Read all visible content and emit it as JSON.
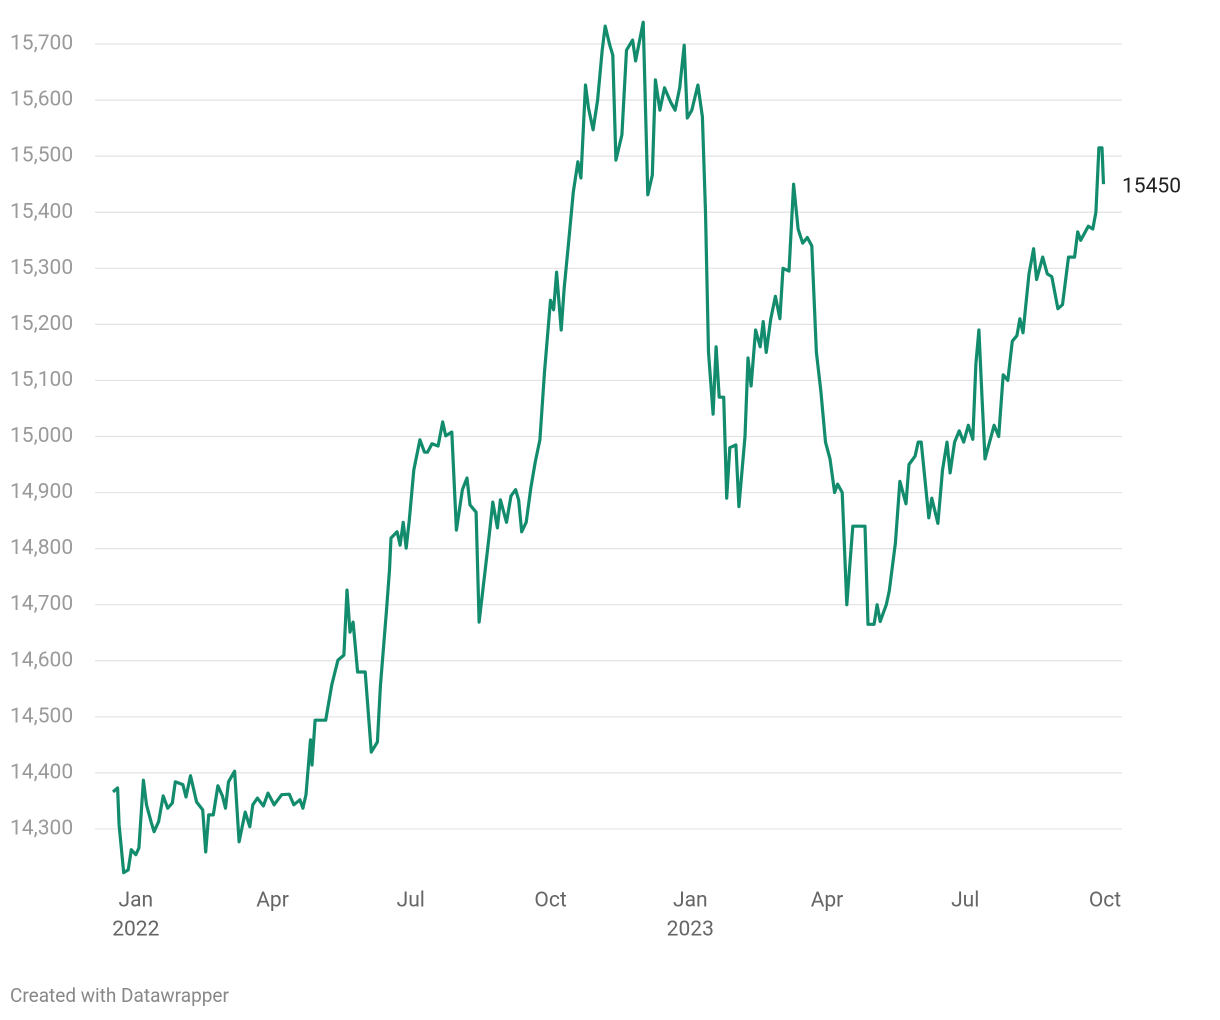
{
  "chart_data": {
    "type": "line",
    "credit": "Created with Datawrapper",
    "color": "#138c6e",
    "grid": true,
    "xlim": [
      "2021-12-15",
      "2023-10-01"
    ],
    "ylim": [
      14200,
      15750
    ],
    "yticks": [
      {
        "value": 14300,
        "label": "14,300"
      },
      {
        "value": 14400,
        "label": "14,400"
      },
      {
        "value": 14500,
        "label": "14,500"
      },
      {
        "value": 14600,
        "label": "14,600"
      },
      {
        "value": 14700,
        "label": "14,700"
      },
      {
        "value": 14800,
        "label": "14,800"
      },
      {
        "value": 14900,
        "label": "14,900"
      },
      {
        "value": 15000,
        "label": "15,000"
      },
      {
        "value": 15100,
        "label": "15,100"
      },
      {
        "value": 15200,
        "label": "15,200"
      },
      {
        "value": 15300,
        "label": "15,300"
      },
      {
        "value": 15400,
        "label": "15,400"
      },
      {
        "value": 15500,
        "label": "15,500"
      },
      {
        "value": 15600,
        "label": "15,600"
      },
      {
        "value": 15700,
        "label": "15,700"
      }
    ],
    "xticks": [
      {
        "value": "2022-01-01",
        "label": "Jan",
        "year": "2022"
      },
      {
        "value": "2022-04-01",
        "label": "Apr"
      },
      {
        "value": "2022-07-01",
        "label": "Jul"
      },
      {
        "value": "2022-10-01",
        "label": "Oct"
      },
      {
        "value": "2023-01-01",
        "label": "Jan",
        "year": "2023"
      },
      {
        "value": "2023-04-01",
        "label": "Apr"
      },
      {
        "value": "2023-07-01",
        "label": "Jul"
      },
      {
        "value": "2023-10-01",
        "label": "Oct"
      }
    ],
    "x": [
      "2021-12-17",
      "2021-12-20",
      "2021-12-21",
      "2021-12-24",
      "2021-12-27",
      "2021-12-29",
      "2022-01-01",
      "2022-01-03",
      "2022-01-06",
      "2022-01-08",
      "2022-01-11",
      "2022-01-13",
      "2022-01-16",
      "2022-01-19",
      "2022-01-22",
      "2022-01-25",
      "2022-01-27",
      "2022-02-01",
      "2022-02-03",
      "2022-02-06",
      "2022-02-10",
      "2022-02-14",
      "2022-02-16",
      "2022-02-18",
      "2022-02-21",
      "2022-02-24",
      "2022-02-27",
      "2022-03-01",
      "2022-03-03",
      "2022-03-07",
      "2022-03-10",
      "2022-03-14",
      "2022-03-17",
      "2022-03-19",
      "2022-03-22",
      "2022-03-26",
      "2022-03-29",
      "2022-04-02",
      "2022-04-07",
      "2022-04-12",
      "2022-04-15",
      "2022-04-19",
      "2022-04-21",
      "2022-04-23",
      "2022-04-26",
      "2022-04-27",
      "2022-04-29",
      "2022-05-06",
      "2022-05-10",
      "2022-05-14",
      "2022-05-18",
      "2022-05-20",
      "2022-05-22",
      "2022-05-24",
      "2022-05-27",
      "2022-06-01",
      "2022-06-05",
      "2022-06-09",
      "2022-06-11",
      "2022-06-15",
      "2022-06-17",
      "2022-06-18",
      "2022-06-22",
      "2022-06-24",
      "2022-06-26",
      "2022-06-28",
      "2022-06-30",
      "2022-07-03",
      "2022-07-07",
      "2022-07-10",
      "2022-07-12",
      "2022-07-15",
      "2022-07-19",
      "2022-07-22",
      "2022-07-24",
      "2022-07-28",
      "2022-07-31",
      "2022-08-04",
      "2022-08-07",
      "2022-08-09",
      "2022-08-13",
      "2022-08-15",
      "2022-08-19",
      "2022-08-22",
      "2022-08-24",
      "2022-08-27",
      "2022-08-29",
      "2022-09-02",
      "2022-09-05",
      "2022-09-08",
      "2022-09-10",
      "2022-09-12",
      "2022-09-15",
      "2022-09-18",
      "2022-09-21",
      "2022-09-24",
      "2022-09-27",
      "2022-10-01",
      "2022-10-03",
      "2022-10-05",
      "2022-10-08",
      "2022-10-10",
      "2022-10-13",
      "2022-10-16",
      "2022-10-19",
      "2022-10-21",
      "2022-10-24",
      "2022-10-26",
      "2022-10-29",
      "2022-11-01",
      "2022-11-04",
      "2022-11-06",
      "2022-11-09",
      "2022-11-11",
      "2022-11-13",
      "2022-11-17",
      "2022-11-20",
      "2022-11-24",
      "2022-11-26",
      "2022-12-01",
      "2022-12-04",
      "2022-12-07",
      "2022-12-09",
      "2022-12-12",
      "2022-12-15",
      "2022-12-19",
      "2022-12-22",
      "2022-12-25",
      "2022-12-28",
      "2022-12-30",
      "2023-01-02",
      "2023-01-06",
      "2023-01-09",
      "2023-01-11",
      "2023-01-13",
      "2023-01-16",
      "2023-01-18",
      "2023-01-20",
      "2023-01-23",
      "2023-01-25",
      "2023-01-27",
      "2023-01-31",
      "2023-02-02",
      "2023-02-06",
      "2023-02-08",
      "2023-02-10",
      "2023-02-13",
      "2023-02-16",
      "2023-02-18",
      "2023-02-20",
      "2023-02-23",
      "2023-02-26",
      "2023-03-01",
      "2023-03-03",
      "2023-03-07",
      "2023-03-10",
      "2023-03-13",
      "2023-03-16",
      "2023-03-19",
      "2023-03-22",
      "2023-03-25",
      "2023-03-28",
      "2023-03-31",
      "2023-04-03",
      "2023-04-06",
      "2023-04-08",
      "2023-04-11",
      "2023-04-14",
      "2023-04-18",
      "2023-04-26",
      "2023-04-28",
      "2023-05-02",
      "2023-05-04",
      "2023-05-06",
      "2023-05-10",
      "2023-05-12",
      "2023-05-16",
      "2023-05-19",
      "2023-05-23",
      "2023-05-25",
      "2023-05-29",
      "2023-05-31",
      "2023-06-02",
      "2023-06-07",
      "2023-06-09",
      "2023-06-13",
      "2023-06-16",
      "2023-06-19",
      "2023-06-21",
      "2023-06-24",
      "2023-06-27",
      "2023-06-30",
      "2023-07-03",
      "2023-07-06",
      "2023-07-08",
      "2023-07-10",
      "2023-07-12",
      "2023-07-14",
      "2023-07-18",
      "2023-07-20",
      "2023-07-23",
      "2023-07-26",
      "2023-07-29",
      "2023-08-01",
      "2023-08-04",
      "2023-08-06",
      "2023-08-08",
      "2023-08-12",
      "2023-08-15",
      "2023-08-17",
      "2023-08-21",
      "2023-08-24",
      "2023-08-27",
      "2023-08-31",
      "2023-09-03",
      "2023-09-07",
      "2023-09-11",
      "2023-09-13",
      "2023-09-15",
      "2023-09-17",
      "2023-09-20",
      "2023-09-23",
      "2023-09-25",
      "2023-09-27",
      "2023-09-29",
      "2023-09-30"
    ],
    "values": [
      14366,
      14373,
      14307,
      14222,
      14227,
      14263,
      14254,
      14266,
      14387,
      14343,
      14313,
      14295,
      14313,
      14359,
      14337,
      14346,
      14384,
      14379,
      14357,
      14395,
      14348,
      14334,
      14259,
      14325,
      14325,
      14377,
      14359,
      14337,
      14384,
      14403,
      14277,
      14330,
      14304,
      14343,
      14355,
      14341,
      14364,
      14343,
      14361,
      14362,
      14343,
      14352,
      14337,
      14361,
      14459,
      14414,
      14494,
      14494,
      14557,
      14601,
      14610,
      14726,
      14651,
      14669,
      14580,
      14580,
      14437,
      14455,
      14555,
      14690,
      14762,
      14819,
      14830,
      14806,
      14847,
      14801,
      14851,
      14940,
      14994,
      14972,
      14972,
      14987,
      14983,
      15026,
      15001,
      15008,
      14833,
      14905,
      14926,
      14878,
      14865,
      14669,
      14762,
      14833,
      14883,
      14837,
      14887,
      14847,
      14894,
      14905,
      14887,
      14830,
      14847,
      14908,
      14955,
      14994,
      15115,
      15243,
      15226,
      15293,
      15190,
      15265,
      15350,
      15436,
      15490,
      15461,
      15627,
      15586,
      15547,
      15600,
      15689,
      15732,
      15698,
      15680,
      15493,
      15538,
      15689,
      15707,
      15670,
      15739,
      15431,
      15466,
      15636,
      15582,
      15622,
      15597,
      15582,
      15622,
      15698,
      15568,
      15582,
      15627,
      15570,
      15400,
      15150,
      15040,
      15160,
      15070,
      15070,
      14890,
      14980,
      14985,
      14875,
      15000,
      15140,
      15090,
      15190,
      15160,
      15205,
      15150,
      15210,
      15250,
      15210,
      15300,
      15295,
      15450,
      15370,
      15345,
      15355,
      15340,
      15150,
      15080,
      14990,
      14960,
      14900,
      14915,
      14900,
      14700,
      14840,
      14840,
      14665,
      14665,
      14700,
      14670,
      14700,
      14725,
      14810,
      14920,
      14880,
      14950,
      14965,
      14990,
      14990,
      14855,
      14890,
      14845,
      14940,
      14990,
      14935,
      14990,
      15010,
      14990,
      15020,
      14995,
      15130,
      15190,
      15070,
      14960,
      15000,
      15020,
      15000,
      15110,
      15100,
      15170,
      15180,
      15210,
      15185,
      15290,
      15335,
      15280,
      15320,
      15290,
      15285,
      15228,
      15235,
      15320,
      15320,
      15365,
      15350,
      15360,
      15375,
      15370,
      15400,
      15515,
      15515,
      15450
    ]
  }
}
